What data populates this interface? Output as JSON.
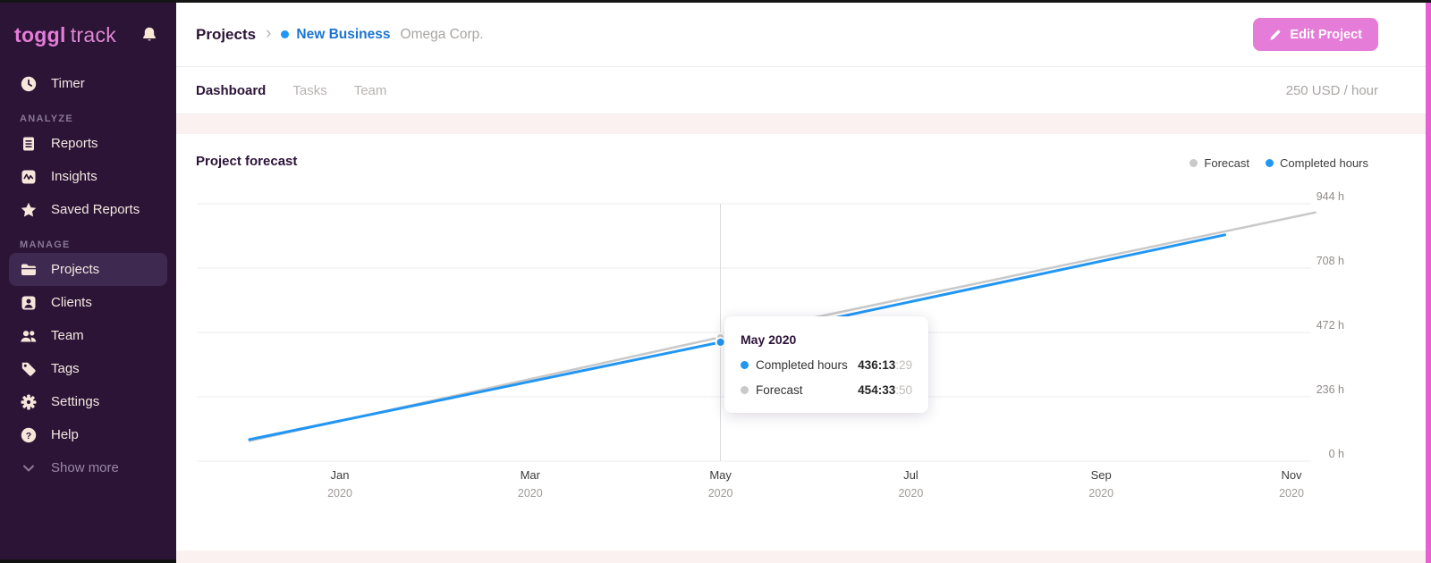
{
  "brand": {
    "logo_bold": "toggl",
    "logo_light": "track"
  },
  "colors": {
    "sidebar_bg": "#2b1436",
    "brand_pink": "#e57cd8",
    "accent_blue": "#2196f3",
    "forecast_gray": "#c9c9c9",
    "page_pink": "#faf1f0",
    "right_edge_strip": "#e65fd3"
  },
  "icons": {
    "bell-icon": "notification bell",
    "clock-icon": "timer clock",
    "reports-icon": "document with lines",
    "insights-icon": "zigzag chart in rounded square",
    "star-icon": "star",
    "folder-icon": "folder",
    "client-icon": "person in rounded square",
    "team-icon": "two people",
    "tag-icon": "price tag",
    "gear-icon": "settings gear",
    "help-icon": "question mark circle",
    "chevron-down-icon": "chevron down",
    "pencil-icon": "edit pencil",
    "chevron-right-icon": "breadcrumb separator"
  },
  "sidebar": {
    "timer": {
      "label": "Timer"
    },
    "sections": [
      {
        "title": "ANALYZE",
        "items": [
          {
            "label": "Reports"
          },
          {
            "label": "Insights"
          },
          {
            "label": "Saved Reports"
          }
        ]
      },
      {
        "title": "MANAGE",
        "items": [
          {
            "label": "Projects",
            "active": true
          },
          {
            "label": "Clients"
          },
          {
            "label": "Team"
          },
          {
            "label": "Tags"
          },
          {
            "label": "Settings"
          },
          {
            "label": "Help"
          }
        ]
      }
    ],
    "show_more": "Show more"
  },
  "header": {
    "breadcrumb": {
      "root": "Projects",
      "project": "New Business",
      "client": "Omega Corp."
    },
    "edit_button": "Edit Project"
  },
  "tabs": {
    "items": [
      "Dashboard",
      "Tasks",
      "Team"
    ],
    "active": "Dashboard",
    "rate": "250 USD / hour"
  },
  "chart_card": {
    "title": "Project forecast",
    "legend": [
      {
        "label": "Forecast",
        "color": "#c9c9c9"
      },
      {
        "label": "Completed hours",
        "color": "#2196f3"
      }
    ]
  },
  "tooltip": {
    "title": "May 2020",
    "rows": [
      {
        "label": "Completed hours",
        "value_main": "436:13",
        "value_sec": ":29",
        "color": "#2196f3"
      },
      {
        "label": "Forecast",
        "value_main": "454:33",
        "value_sec": ":50",
        "color": "#c9c9c9"
      }
    ]
  },
  "chart_data": {
    "type": "line",
    "title": "Project forecast",
    "xlabel": "",
    "ylabel": "hours",
    "ylim": [
      0,
      944
    ],
    "grid": "horizontal",
    "legend_position": "top-right",
    "x_unit": "months (m = months after Dec 2019, Jan 2020 = 1)",
    "x_ticks": [
      {
        "m": 1,
        "month": "Jan",
        "year": "2020"
      },
      {
        "m": 3,
        "month": "Mar",
        "year": "2020"
      },
      {
        "m": 5,
        "month": "May",
        "year": "2020"
      },
      {
        "m": 7,
        "month": "Jul",
        "year": "2020"
      },
      {
        "m": 9,
        "month": "Sep",
        "year": "2020"
      },
      {
        "m": 11,
        "month": "Nov",
        "year": "2020"
      }
    ],
    "y_ticks": [
      {
        "v": 0,
        "label": "0 h"
      },
      {
        "v": 236,
        "label": "236 h"
      },
      {
        "v": 472,
        "label": "472 h"
      },
      {
        "v": 708,
        "label": "708 h"
      },
      {
        "v": 944,
        "label": "944 h"
      }
    ],
    "series": [
      {
        "name": "Forecast",
        "color": "#c9c9c9",
        "points": [
          {
            "m": 0.05,
            "v": 74
          },
          {
            "m": 5,
            "v": 454.56
          },
          {
            "m": 11.25,
            "v": 912
          }
        ]
      },
      {
        "name": "Completed hours",
        "color": "#2196f3",
        "points": [
          {
            "m": 0.05,
            "v": 79
          },
          {
            "m": 5,
            "v": 436.22
          },
          {
            "m": 10.3,
            "v": 830
          }
        ]
      }
    ],
    "hover": {
      "m": 5,
      "label": "May 2020",
      "completed": "436:13:29",
      "forecast": "454:33:50",
      "completed_v": 436.22,
      "forecast_v": 454.56
    }
  }
}
